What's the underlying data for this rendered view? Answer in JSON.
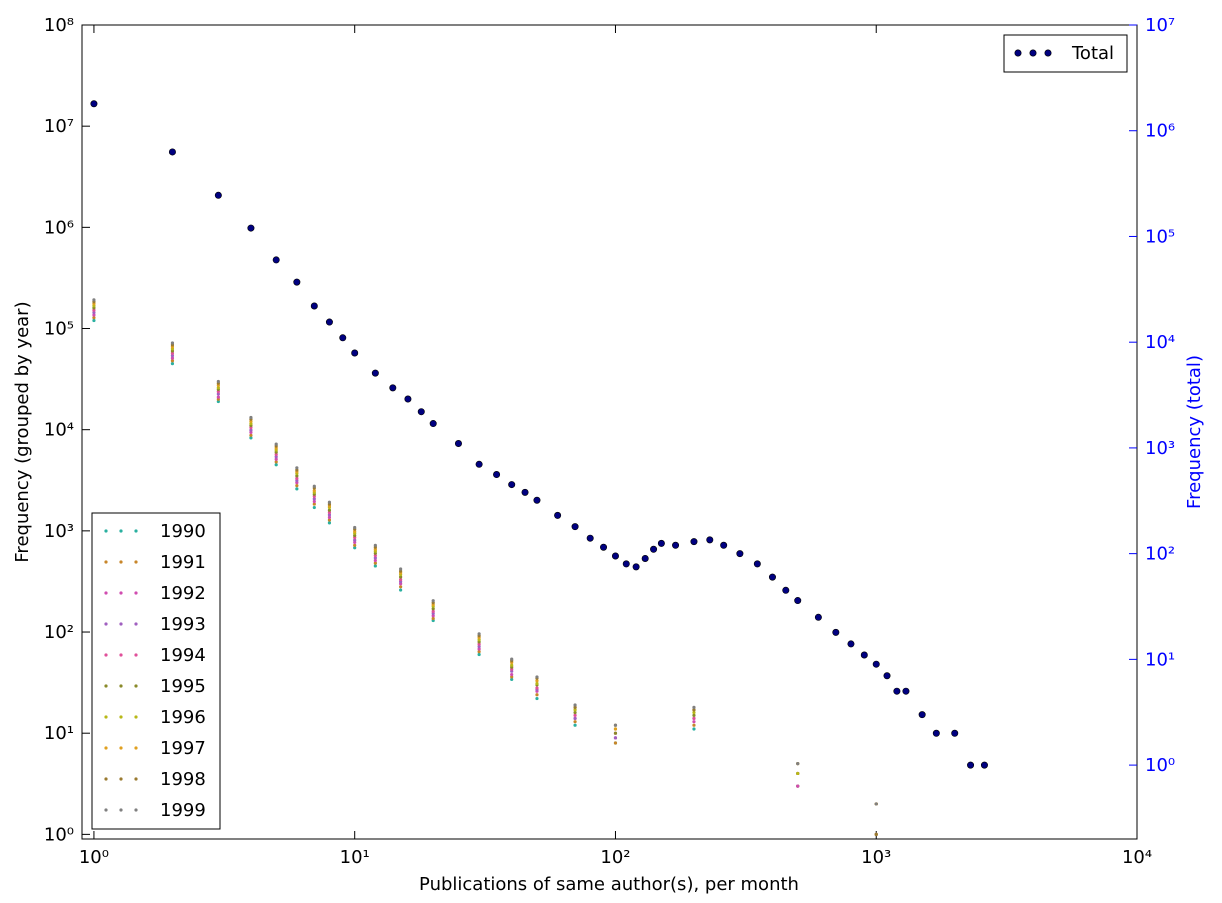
{
  "chart_data": {
    "type": "scatter",
    "x_label": "Publications of same author(s), per month",
    "y_label": "Frequency (grouped by year)",
    "y2_label": "Frequency (total)",
    "log_x": true,
    "log_y": true,
    "log_y2": true,
    "xlim": [
      0.9,
      10000
    ],
    "ylim": [
      0.9,
      100000000
    ],
    "y2lim": [
      0.2,
      10000000
    ],
    "xticks": [
      {
        "value": 1,
        "label": "10⁰"
      },
      {
        "value": 10,
        "label": "10¹"
      },
      {
        "value": 100,
        "label": "10²"
      },
      {
        "value": 1000,
        "label": "10³"
      },
      {
        "value": 10000,
        "label": "10⁴"
      }
    ],
    "yticks": [
      {
        "value": 1,
        "label": "10⁰"
      },
      {
        "value": 10,
        "label": "10¹"
      },
      {
        "value": 100,
        "label": "10²"
      },
      {
        "value": 1000,
        "label": "10³"
      },
      {
        "value": 10000,
        "label": "10⁴"
      },
      {
        "value": 100000,
        "label": "10⁵"
      },
      {
        "value": 1000000,
        "label": "10⁶"
      },
      {
        "value": 10000000,
        "label": "10⁷"
      },
      {
        "value": 100000000,
        "label": "10⁸"
      }
    ],
    "y2ticks": [
      {
        "value": 1,
        "label": "10⁰"
      },
      {
        "value": 10,
        "label": "10¹"
      },
      {
        "value": 100,
        "label": "10²"
      },
      {
        "value": 1000,
        "label": "10³"
      },
      {
        "value": 10000,
        "label": "10⁴"
      },
      {
        "value": 100000,
        "label": "10⁵"
      },
      {
        "value": 1000000,
        "label": "10⁶"
      },
      {
        "value": 10000000,
        "label": "10⁷"
      }
    ],
    "y2_color": "#0000ff",
    "legend": "lower left",
    "legend2": "upper right",
    "series": [
      {
        "name": "1990",
        "color": "#2ab0a0",
        "x": [
          1,
          2,
          3,
          4,
          5,
          6,
          7,
          8,
          10,
          12,
          15,
          20,
          30,
          40,
          50,
          70,
          100,
          200,
          500,
          1000
        ],
        "values": [
          120000,
          45000,
          19000,
          8300,
          4500,
          2600,
          1700,
          1200,
          680,
          450,
          260,
          130,
          60,
          34,
          22,
          12,
          8,
          11,
          3,
          1
        ]
      },
      {
        "name": "1991",
        "color": "#c8862a",
        "x": [
          1,
          2,
          3,
          4,
          5,
          6,
          7,
          8,
          10,
          12,
          15,
          20,
          30,
          40,
          50,
          70,
          100,
          200,
          500,
          1000
        ],
        "values": [
          128000,
          48000,
          20000,
          8800,
          4800,
          2800,
          1840,
          1280,
          720,
          480,
          280,
          136,
          64,
          36,
          24,
          13,
          8,
          12,
          3,
          2
        ]
      },
      {
        "name": "1992",
        "color": "#d04cb0",
        "x": [
          1,
          2,
          3,
          4,
          5,
          6,
          7,
          8,
          10,
          12,
          15,
          20,
          30,
          40,
          50,
          70,
          100,
          200,
          500,
          1000
        ],
        "values": [
          136000,
          51000,
          21000,
          9400,
          5100,
          3000,
          1950,
          1360,
          770,
          510,
          300,
          145,
          68,
          38,
          26,
          14,
          9,
          13,
          3,
          1
        ]
      },
      {
        "name": "1993",
        "color": "#a060c0",
        "x": [
          1,
          2,
          3,
          4,
          5,
          6,
          7,
          8,
          10,
          12,
          15,
          20,
          30,
          40,
          50,
          70,
          100,
          200,
          500,
          1000
        ],
        "values": [
          144000,
          54000,
          22500,
          9900,
          5400,
          3150,
          2070,
          1440,
          810,
          540,
          315,
          153,
          72,
          41,
          27,
          14,
          9,
          14,
          4,
          2
        ]
      },
      {
        "name": "1994",
        "color": "#e0509a",
        "x": [
          1,
          2,
          3,
          4,
          5,
          6,
          7,
          8,
          10,
          12,
          15,
          20,
          30,
          40,
          50,
          70,
          100,
          200,
          500,
          1000
        ],
        "values": [
          152000,
          57000,
          23800,
          10500,
          5700,
          3300,
          2200,
          1520,
          860,
          570,
          330,
          160,
          76,
          43,
          28,
          15,
          10,
          14,
          4,
          1
        ]
      },
      {
        "name": "1995",
        "color": "#8a8a2a",
        "x": [
          1,
          2,
          3,
          4,
          5,
          6,
          7,
          8,
          10,
          12,
          15,
          20,
          30,
          40,
          50,
          70,
          100,
          200,
          500,
          1000
        ],
        "values": [
          160000,
          60000,
          25000,
          11000,
          6000,
          3500,
          2300,
          1600,
          900,
          600,
          350,
          170,
          80,
          45,
          30,
          16,
          10,
          15,
          4,
          2
        ]
      },
      {
        "name": "1996",
        "color": "#b8b818",
        "x": [
          1,
          2,
          3,
          4,
          5,
          6,
          7,
          8,
          10,
          12,
          15,
          20,
          30,
          40,
          50,
          70,
          100,
          200,
          500,
          1000
        ],
        "values": [
          168000,
          63000,
          26000,
          11500,
          6300,
          3700,
          2400,
          1700,
          950,
          630,
          370,
          180,
          84,
          47,
          31,
          17,
          11,
          16,
          4,
          1
        ]
      },
      {
        "name": "1997",
        "color": "#e0a020",
        "x": [
          1,
          2,
          3,
          4,
          5,
          6,
          7,
          8,
          10,
          12,
          15,
          20,
          30,
          40,
          50,
          70,
          100,
          200,
          500,
          1000
        ],
        "values": [
          176000,
          66000,
          27500,
          12100,
          6600,
          3850,
          2500,
          1760,
          990,
          660,
          385,
          187,
          88,
          50,
          33,
          18,
          11,
          17,
          5,
          2
        ]
      },
      {
        "name": "1998",
        "color": "#9a7a30",
        "x": [
          1,
          2,
          3,
          4,
          5,
          6,
          7,
          8,
          10,
          12,
          15,
          20,
          30,
          40,
          50,
          70,
          100,
          200,
          500,
          1000
        ],
        "values": [
          184000,
          69000,
          28800,
          12700,
          6900,
          4000,
          2650,
          1840,
          1040,
          690,
          400,
          195,
          92,
          52,
          35,
          18,
          12,
          17,
          5,
          1
        ]
      },
      {
        "name": "1999",
        "color": "#808080",
        "x": [
          1,
          2,
          3,
          4,
          5,
          6,
          7,
          8,
          10,
          12,
          15,
          20,
          30,
          40,
          50,
          70,
          100,
          200,
          500,
          1000
        ],
        "values": [
          192000,
          72000,
          30000,
          13200,
          7200,
          4200,
          2760,
          1920,
          1080,
          720,
          420,
          204,
          96,
          54,
          36,
          19,
          12,
          18,
          5,
          2
        ]
      },
      {
        "name": "Total",
        "color": "#000080",
        "axis": "y2",
        "x": [
          1,
          2,
          3,
          4,
          5,
          6,
          7,
          8,
          9,
          10,
          12,
          14,
          16,
          18,
          20,
          25,
          30,
          35,
          40,
          45,
          50,
          60,
          70,
          80,
          90,
          100,
          110,
          120,
          130,
          140,
          150,
          170,
          200,
          230,
          260,
          300,
          350,
          400,
          450,
          500,
          600,
          700,
          800,
          900,
          1000,
          1100,
          1200,
          1300,
          1500,
          1700,
          2000,
          2300,
          2600
        ],
        "values": [
          1800000,
          630000,
          245000,
          120000,
          60000,
          37000,
          22000,
          15500,
          11000,
          7900,
          5100,
          3700,
          2900,
          2200,
          1700,
          1100,
          700,
          560,
          450,
          380,
          320,
          230,
          180,
          140,
          115,
          95,
          80,
          75,
          90,
          110,
          125,
          120,
          130,
          135,
          120,
          100,
          80,
          60,
          45,
          36,
          25,
          18,
          14,
          11,
          9,
          7,
          5,
          5,
          3,
          2,
          2,
          1,
          1
        ]
      }
    ]
  }
}
